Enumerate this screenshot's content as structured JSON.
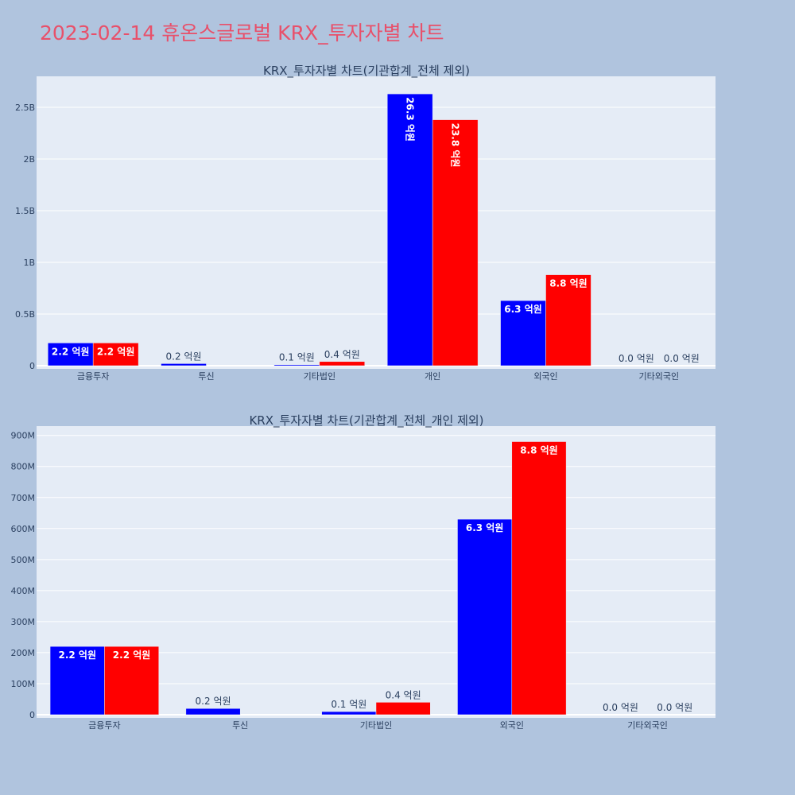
{
  "title": "2023-02-14 휴온스글로벌 KRX_투자자별 차트",
  "colors": {
    "background": "#b0c4de",
    "plot_bg": "#e5ecf6",
    "grid": "#ffffff",
    "title": "#e8506a",
    "text": "#2a3f5f",
    "series_a": "#0000ff",
    "series_b": "#ff0000"
  },
  "chart_data": [
    {
      "type": "bar",
      "title": "KRX_투자자별 차트(기관합계_전체 제외)",
      "categories": [
        "금융투자",
        "투신",
        "기타법인",
        "개인",
        "외국인",
        "기타외국인"
      ],
      "ylim": [
        0,
        2800000000
      ],
      "yticks": [
        0,
        500000000,
        1000000000,
        1500000000,
        2000000000,
        2500000000
      ],
      "ytick_labels": [
        "0",
        "0.5B",
        "1B",
        "1.5B",
        "2B",
        "2.5B"
      ],
      "grid": true,
      "series": [
        {
          "color": "#0000ff",
          "values": [
            220000000,
            20000000,
            10000000,
            2630000000,
            630000000,
            0
          ],
          "labels": [
            "2.2 억원",
            "0.2 억원",
            "0.1 억원",
            "26.3 억원",
            "6.3 억원",
            "0.0 억원"
          ]
        },
        {
          "color": "#ff0000",
          "values": [
            220000000,
            0,
            40000000,
            2380000000,
            880000000,
            0
          ],
          "labels": [
            "2.2 억원",
            "",
            "0.4 억원",
            "23.8 억원",
            "8.8 억원",
            "0.0 억원"
          ]
        }
      ]
    },
    {
      "type": "bar",
      "title": "KRX_투자자별 차트(기관합계_전체_개인 제외)",
      "categories": [
        "금융투자",
        "투신",
        "기타법인",
        "외국인",
        "기타외국인"
      ],
      "ylim": [
        0,
        930000000
      ],
      "yticks": [
        0,
        100000000,
        200000000,
        300000000,
        400000000,
        500000000,
        600000000,
        700000000,
        800000000,
        900000000
      ],
      "ytick_labels": [
        "0",
        "100M",
        "200M",
        "300M",
        "400M",
        "500M",
        "600M",
        "700M",
        "800M",
        "900M"
      ],
      "grid": true,
      "series": [
        {
          "color": "#0000ff",
          "values": [
            220000000,
            20000000,
            10000000,
            630000000,
            0
          ],
          "labels": [
            "2.2 억원",
            "0.2 억원",
            "0.1 억원",
            "6.3 억원",
            "0.0 억원"
          ]
        },
        {
          "color": "#ff0000",
          "values": [
            220000000,
            0,
            40000000,
            880000000,
            0
          ],
          "labels": [
            "2.2 억원",
            "",
            "0.4 억원",
            "8.8 억원",
            "0.0 억원"
          ]
        }
      ]
    }
  ]
}
